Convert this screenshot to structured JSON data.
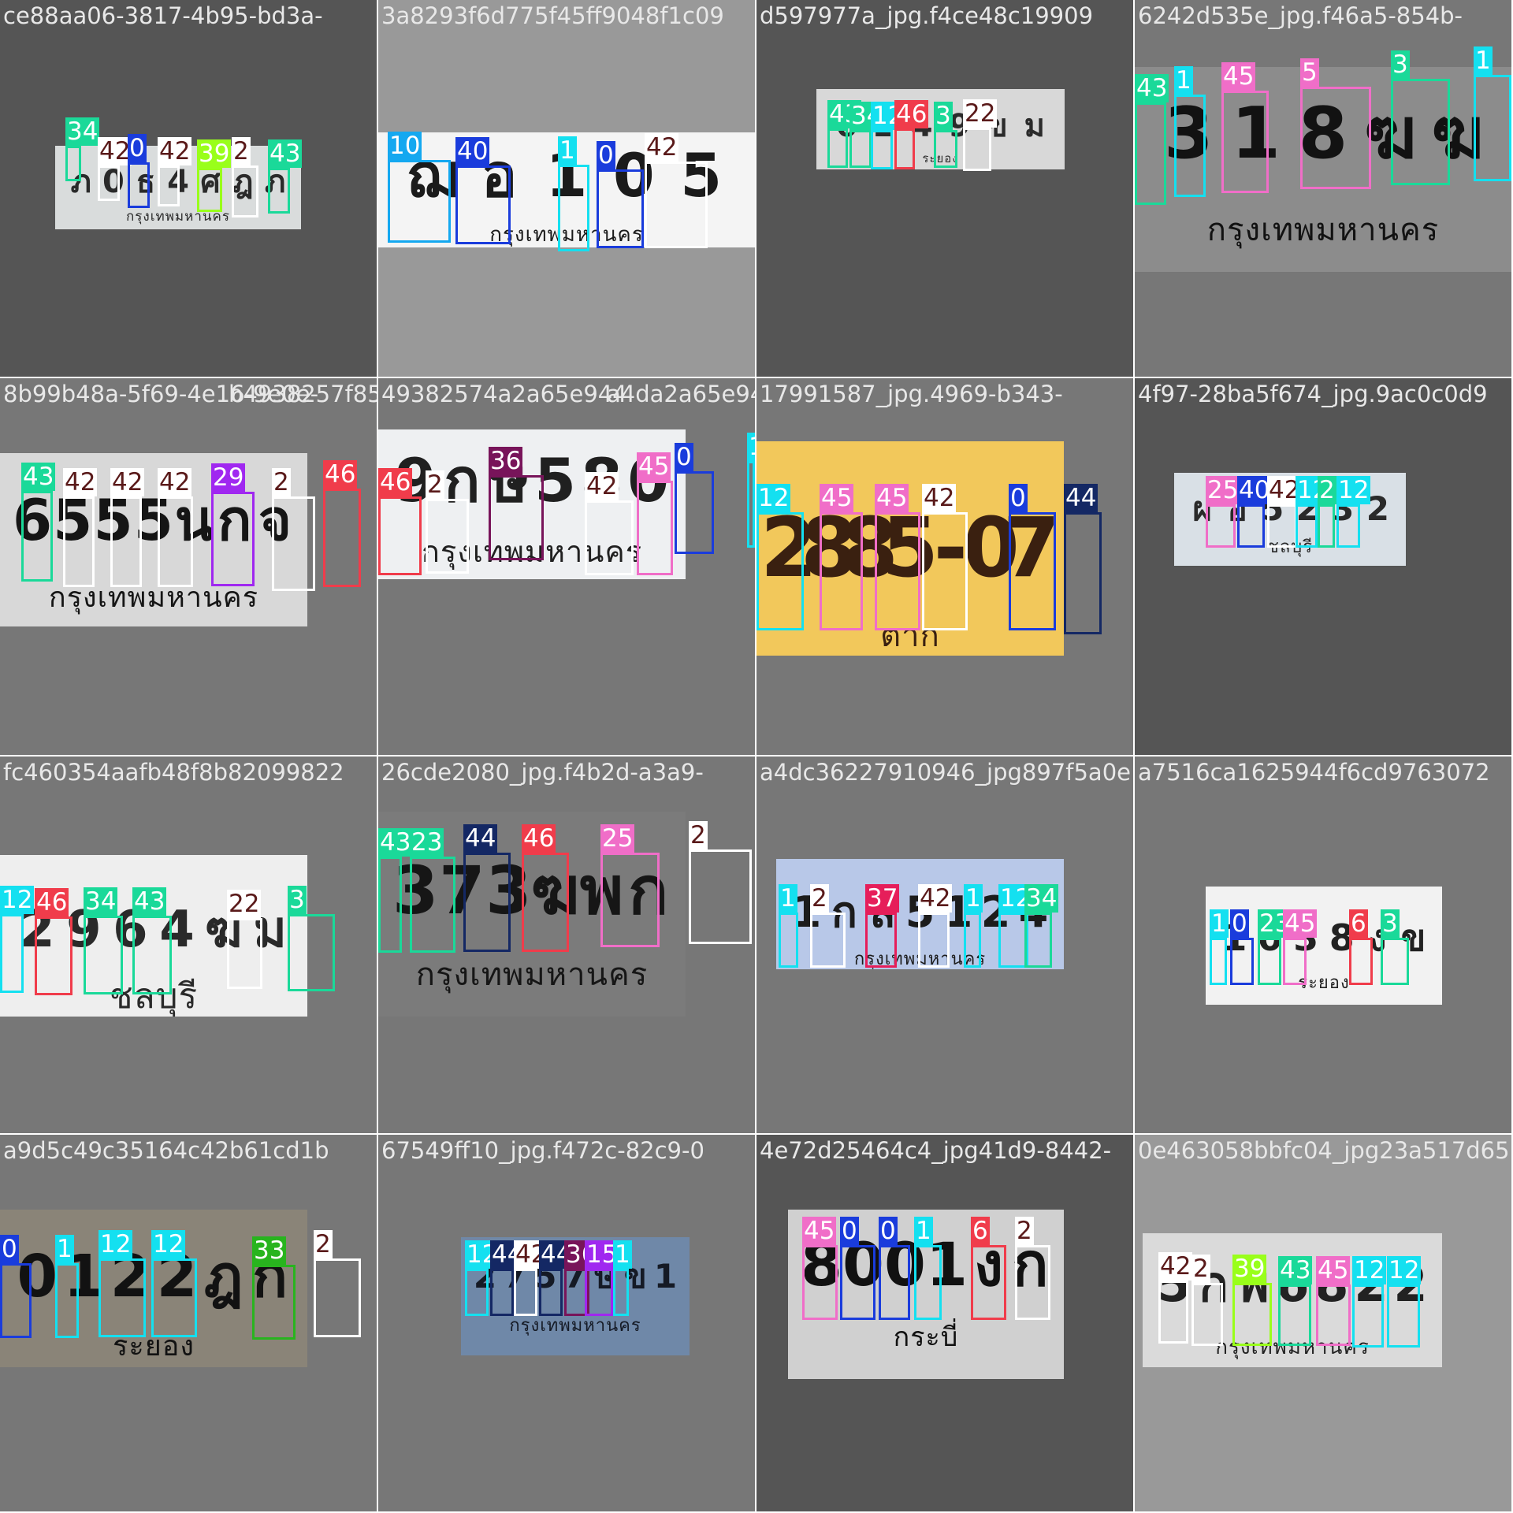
{
  "tiles": [
    {
      "id": 0,
      "filename": "ce88aa06-3817-4b95-bd3a-",
      "overlap": "",
      "bg": "#555555",
      "col": 0,
      "row": 0
    },
    {
      "id": 1,
      "filename": "3a8293f6d775f45ff9048f1c09",
      "overlap": "",
      "bg": "#999999",
      "col": 1,
      "row": 0
    },
    {
      "id": 2,
      "filename": "d597977a_jpg.f4ce48c19909",
      "overlap": "",
      "bg": "#555555",
      "col": 2,
      "row": 0
    },
    {
      "id": 3,
      "filename": "6242d535e_jpg.f46a5-854b-",
      "overlap": "",
      "bg": "#777777",
      "col": 3,
      "row": 0
    },
    {
      "id": 4,
      "filename": "8b99b48a-5f69-4e16-9e0e-",
      "overlap": "b4938257f8557_jpg",
      "bg": "#777777",
      "col": 0,
      "row": 1
    },
    {
      "id": 5,
      "filename": "49382574a2a65e944",
      "overlap": "a4da2a65e944",
      "bg": "#777777",
      "col": 1,
      "row": 1
    },
    {
      "id": 6,
      "filename": "17991587_jpg.4969-b343-",
      "overlap": "",
      "bg": "#777777",
      "col": 2,
      "row": 1
    },
    {
      "id": 7,
      "filename": "4f97-28ba5f674_jpg.9ac0c0d9",
      "overlap": "",
      "bg": "#555555",
      "col": 3,
      "row": 1
    },
    {
      "id": 8,
      "filename": "fc460354aafb48f8b82099822",
      "overlap": "",
      "bg": "#777777",
      "col": 0,
      "row": 2
    },
    {
      "id": 9,
      "filename": "26cde2080_jpg.f4b2d-a3a9-",
      "overlap": "",
      "bg": "#777777",
      "col": 1,
      "row": 2
    },
    {
      "id": 10,
      "filename": "a4dc36227910946_jpg897f5a0e",
      "overlap": "",
      "bg": "#777777",
      "col": 2,
      "row": 2
    },
    {
      "id": 11,
      "filename": "a7516ca1625944f6cd9763072",
      "overlap": "",
      "bg": "#777777",
      "col": 3,
      "row": 2
    },
    {
      "id": 12,
      "filename": "a9d5c49c35164c42b61cd1b",
      "overlap": "",
      "bg": "#777777",
      "col": 0,
      "row": 3
    },
    {
      "id": 13,
      "filename": "67549ff10_jpg.f472c-82c9-0",
      "overlap": "",
      "bg": "#777777",
      "col": 1,
      "row": 3
    },
    {
      "id": 14,
      "filename": "4e72d25464c4_jpg41d9-8442-",
      "overlap": "",
      "bg": "#555555",
      "col": 2,
      "row": 3
    },
    {
      "id": 15,
      "filename": "0e463058bbfc04_jpg23a517d65",
      "overlap": "",
      "bg": "#999999",
      "col": 3,
      "row": 3
    }
  ],
  "plates": [
    {
      "tile": 0,
      "chars": "ภ0ธ4ศฎภ",
      "province": "กรุงเทพมหานคร",
      "bg": "#d9dcdc",
      "dark": "#2a2a2a"
    },
    {
      "tile": 1,
      "chars": "ฌอ105",
      "province": "กรุงเทพมหานคร",
      "bg": "#f4f4f4",
      "dark": "#1b1b1b"
    },
    {
      "tile": 2,
      "chars": "6249ขม",
      "province": "ระยอง",
      "bg": "#d8d8d8",
      "dark": "#2b2b2b"
    },
    {
      "tile": 3,
      "chars": "318ฆฆ",
      "province": "กรุงเทพมหานคร",
      "bg": "#8c8c8c",
      "dark": "#121212"
    },
    {
      "tile": 4,
      "chars": "6555นกจ",
      "province": "กรุงเทพมหานคร",
      "bg": "#d8d8d8",
      "dark": "#151515"
    },
    {
      "tile": 5,
      "chars": "9กษ580",
      "province": "กรุงเทพมหานคร",
      "bg": "#eef0f2",
      "dark": "#202020"
    },
    {
      "tile": 6,
      "chars": "2885-07",
      "province": "ตาก",
      "bg": "#f2c85b",
      "dark": "#3a2010"
    },
    {
      "tile": 7,
      "chars": "ผอ5232",
      "province": "ชลบุรี",
      "bg": "#d9e0e6",
      "dark": "#2a2a2a"
    },
    {
      "tile": 8,
      "chars": "2964ฆม",
      "province": "ชลบุรี",
      "bg": "#eeeeee",
      "dark": "#2a2a2a"
    },
    {
      "tile": 9,
      "chars": "373ฆพก",
      "province": "กรุงเทพมหานคร",
      "bg": "#7b7b7b",
      "dark": "#161616"
    },
    {
      "tile": 10,
      "chars": "1กล5124",
      "province": "กรุงเทพมหานคร",
      "bg": "#b8c8e8",
      "dark": "#1c1c1c"
    },
    {
      "tile": 11,
      "chars": "1038งข",
      "province": "ระยอง",
      "bg": "#f2f2f2",
      "dark": "#222222"
    },
    {
      "tile": 12,
      "chars": "0122ฎก",
      "province": "ระยอง",
      "bg": "#8a8478",
      "dark": "#121212"
    },
    {
      "tile": 13,
      "chars": "2757ษข1",
      "province": "กรุงเทพมหานคร",
      "bg": "#6f88a8",
      "dark": "#151a25"
    },
    {
      "tile": 14,
      "chars": "8001งก",
      "province": "กระบี่",
      "bg": "#d0d0d0",
      "dark": "#111111"
    },
    {
      "tile": 15,
      "chars": "5กพ6822",
      "province": "กรุงเทพมหานคร",
      "bg": "#dadada",
      "dark": "#222222"
    }
  ],
  "detections": [
    {
      "tile": 0,
      "label": "34",
      "color": "#1ad999"
    },
    {
      "tile": 0,
      "label": "42",
      "color": "#ffffff"
    },
    {
      "tile": 0,
      "label": "0",
      "color": "#1a3cdc"
    },
    {
      "tile": 0,
      "label": "42",
      "color": "#ffffff"
    },
    {
      "tile": 0,
      "label": "39",
      "color": "#99ff1a"
    },
    {
      "tile": 0,
      "label": "2",
      "color": "#ffffff"
    },
    {
      "tile": 0,
      "label": "43",
      "color": "#1ad999"
    },
    {
      "tile": 1,
      "label": "10",
      "color": "#14a8f0"
    },
    {
      "tile": 1,
      "label": "40",
      "color": "#1a3cdc"
    },
    {
      "tile": 1,
      "label": "1",
      "color": "#14e0f0"
    },
    {
      "tile": 1,
      "label": "0",
      "color": "#1a3cdc"
    },
    {
      "tile": 1,
      "label": "42",
      "color": "#ffffff"
    },
    {
      "tile": 2,
      "label": "43",
      "color": "#1ad999"
    },
    {
      "tile": 2,
      "label": "34",
      "color": "#1ad999"
    },
    {
      "tile": 2,
      "label": "12",
      "color": "#14e0f0"
    },
    {
      "tile": 2,
      "label": "46",
      "color": "#f03c4b"
    },
    {
      "tile": 2,
      "label": "3",
      "color": "#1ad999"
    },
    {
      "tile": 2,
      "label": "22",
      "color": "#ffffff"
    },
    {
      "tile": 3,
      "label": "43",
      "color": "#1ad999"
    },
    {
      "tile": 3,
      "label": "1",
      "color": "#14e0f0"
    },
    {
      "tile": 3,
      "label": "45",
      "color": "#f06ec8"
    },
    {
      "tile": 3,
      "label": "5",
      "color": "#f06ec8"
    },
    {
      "tile": 3,
      "label": "3",
      "color": "#1ad999"
    },
    {
      "tile": 3,
      "label": "1",
      "color": "#14e0f0"
    },
    {
      "tile": 4,
      "label": "43",
      "color": "#1ad999"
    },
    {
      "tile": 4,
      "label": "42",
      "color": "#ffffff"
    },
    {
      "tile": 4,
      "label": "42",
      "color": "#ffffff"
    },
    {
      "tile": 4,
      "label": "42",
      "color": "#ffffff"
    },
    {
      "tile": 4,
      "label": "29",
      "color": "#a028f0"
    },
    {
      "tile": 4,
      "label": "2",
      "color": "#ffffff"
    },
    {
      "tile": 4,
      "label": "46",
      "color": "#f03c4b"
    },
    {
      "tile": 5,
      "label": "46",
      "color": "#f03c4b"
    },
    {
      "tile": 5,
      "label": "2",
      "color": "#ffffff"
    },
    {
      "tile": 5,
      "label": "36",
      "color": "#78145a"
    },
    {
      "tile": 5,
      "label": "42",
      "color": "#ffffff"
    },
    {
      "tile": 5,
      "label": "45",
      "color": "#f06ec8"
    },
    {
      "tile": 5,
      "label": "0",
      "color": "#1a3cdc"
    },
    {
      "tile": 5,
      "label": "1",
      "color": "#14e0f0"
    },
    {
      "tile": 6,
      "label": "12",
      "color": "#14e0f0"
    },
    {
      "tile": 6,
      "label": "45",
      "color": "#f06ec8"
    },
    {
      "tile": 6,
      "label": "45",
      "color": "#f06ec8"
    },
    {
      "tile": 6,
      "label": "42",
      "color": "#ffffff"
    },
    {
      "tile": 6,
      "label": "0",
      "color": "#1a3cdc"
    },
    {
      "tile": 6,
      "label": "44",
      "color": "#142864"
    },
    {
      "tile": 7,
      "label": "25",
      "color": "#f06ec8"
    },
    {
      "tile": 7,
      "label": "40",
      "color": "#1a3cdc"
    },
    {
      "tile": 7,
      "label": "42",
      "color": "#ffffff"
    },
    {
      "tile": 7,
      "label": "12",
      "color": "#14e0f0"
    },
    {
      "tile": 7,
      "label": "23",
      "color": "#1ad999"
    },
    {
      "tile": 7,
      "label": "12",
      "color": "#14e0f0"
    },
    {
      "tile": 8,
      "label": "12",
      "color": "#14e0f0"
    },
    {
      "tile": 8,
      "label": "46",
      "color": "#f03c4b"
    },
    {
      "tile": 8,
      "label": "34",
      "color": "#1ad999"
    },
    {
      "tile": 8,
      "label": "43",
      "color": "#1ad999"
    },
    {
      "tile": 8,
      "label": "22",
      "color": "#ffffff"
    },
    {
      "tile": 8,
      "label": "3",
      "color": "#1ad999"
    },
    {
      "tile": 9,
      "label": "43",
      "color": "#1ad999"
    },
    {
      "tile": 9,
      "label": "23",
      "color": "#1ad999"
    },
    {
      "tile": 9,
      "label": "44",
      "color": "#142864"
    },
    {
      "tile": 9,
      "label": "46",
      "color": "#f03c4b"
    },
    {
      "tile": 9,
      "label": "25",
      "color": "#f06ec8"
    },
    {
      "tile": 9,
      "label": "2",
      "color": "#ffffff"
    },
    {
      "tile": 10,
      "label": "1",
      "color": "#14e0f0"
    },
    {
      "tile": 10,
      "label": "2",
      "color": "#ffffff"
    },
    {
      "tile": 10,
      "label": "37",
      "color": "#e61e5a"
    },
    {
      "tile": 10,
      "label": "42",
      "color": "#ffffff"
    },
    {
      "tile": 10,
      "label": "1",
      "color": "#14e0f0"
    },
    {
      "tile": 10,
      "label": "12",
      "color": "#14e0f0"
    },
    {
      "tile": 10,
      "label": "34",
      "color": "#1ad999"
    },
    {
      "tile": 11,
      "label": "1",
      "color": "#14e0f0"
    },
    {
      "tile": 11,
      "label": "0",
      "color": "#1a3cdc"
    },
    {
      "tile": 11,
      "label": "23",
      "color": "#1ad999"
    },
    {
      "tile": 11,
      "label": "45",
      "color": "#f06ec8"
    },
    {
      "tile": 11,
      "label": "6",
      "color": "#f03c4b"
    },
    {
      "tile": 11,
      "label": "3",
      "color": "#1ad999"
    },
    {
      "tile": 12,
      "label": "0",
      "color": "#1a3cdc"
    },
    {
      "tile": 12,
      "label": "1",
      "color": "#14e0f0"
    },
    {
      "tile": 12,
      "label": "12",
      "color": "#14e0f0"
    },
    {
      "tile": 12,
      "label": "12",
      "color": "#14e0f0"
    },
    {
      "tile": 12,
      "label": "33",
      "color": "#28b41e"
    },
    {
      "tile": 12,
      "label": "2",
      "color": "#ffffff"
    },
    {
      "tile": 13,
      "label": "12",
      "color": "#14e0f0"
    },
    {
      "tile": 13,
      "label": "44",
      "color": "#142864"
    },
    {
      "tile": 13,
      "label": "42",
      "color": "#ffffff"
    },
    {
      "tile": 13,
      "label": "44",
      "color": "#142864"
    },
    {
      "tile": 13,
      "label": "36",
      "color": "#78145a"
    },
    {
      "tile": 13,
      "label": "15",
      "color": "#a028f0"
    },
    {
      "tile": 13,
      "label": "1",
      "color": "#14e0f0"
    },
    {
      "tile": 14,
      "label": "45",
      "color": "#f06ec8"
    },
    {
      "tile": 14,
      "label": "0",
      "color": "#1a3cdc"
    },
    {
      "tile": 14,
      "label": "0",
      "color": "#1a3cdc"
    },
    {
      "tile": 14,
      "label": "1",
      "color": "#14e0f0"
    },
    {
      "tile": 14,
      "label": "6",
      "color": "#f03c4b"
    },
    {
      "tile": 14,
      "label": "2",
      "color": "#ffffff"
    },
    {
      "tile": 15,
      "label": "42",
      "color": "#ffffff"
    },
    {
      "tile": 15,
      "label": "2",
      "color": "#ffffff"
    },
    {
      "tile": 15,
      "label": "39",
      "color": "#99ff1a"
    },
    {
      "tile": 15,
      "label": "43",
      "color": "#1ad999"
    },
    {
      "tile": 15,
      "label": "45",
      "color": "#f06ec8"
    },
    {
      "tile": 15,
      "label": "12",
      "color": "#14e0f0"
    },
    {
      "tile": 15,
      "label": "12",
      "color": "#14e0f0"
    }
  ]
}
